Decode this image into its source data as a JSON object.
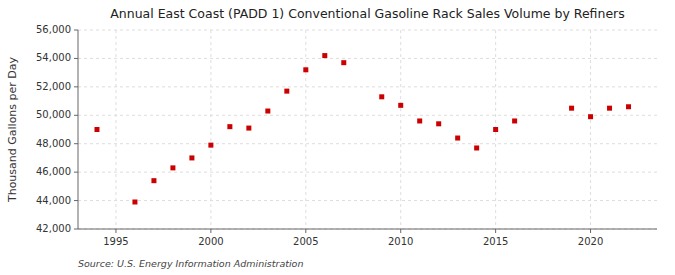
{
  "chart_data": {
    "type": "scatter",
    "title": "Annual East Coast (PADD 1) Conventional Gasoline Rack Sales Volume by Refiners",
    "y_label": "Thousand Gallons per Day",
    "annotation": "Source: U.S. Energy Information Administration",
    "x": [
      1994,
      1996,
      1997,
      1998,
      1999,
      2000,
      2001,
      2002,
      2003,
      2004,
      2005,
      2006,
      2007,
      2009,
      2010,
      2011,
      2012,
      2013,
      2014,
      2015,
      2016,
      2019,
      2020,
      2021,
      2022
    ],
    "values": [
      49000,
      43900,
      45400,
      46300,
      47000,
      47900,
      49200,
      49100,
      50300,
      51700,
      53200,
      54200,
      53700,
      51300,
      50700,
      49600,
      49400,
      48400,
      47700,
      49000,
      49600,
      50500,
      49900,
      50500,
      50600
    ],
    "color": "#cc0000",
    "marker": "square",
    "xlim": [
      1993.0,
      2023.5
    ],
    "xticks": [
      1995,
      2000,
      2005,
      2010,
      2015,
      2020
    ],
    "ylim": [
      42000,
      56000
    ],
    "yticks": [
      {
        "value": 42000,
        "label": "42,000"
      },
      {
        "value": 44000,
        "label": "44,000"
      },
      {
        "value": 46000,
        "label": "46,000"
      },
      {
        "value": 48000,
        "label": "48,000"
      },
      {
        "value": 50000,
        "label": "50,000"
      },
      {
        "value": 52000,
        "label": "52,000"
      },
      {
        "value": 54000,
        "label": "54,000"
      },
      {
        "value": 56000,
        "label": "56,000"
      }
    ],
    "grid": true
  }
}
